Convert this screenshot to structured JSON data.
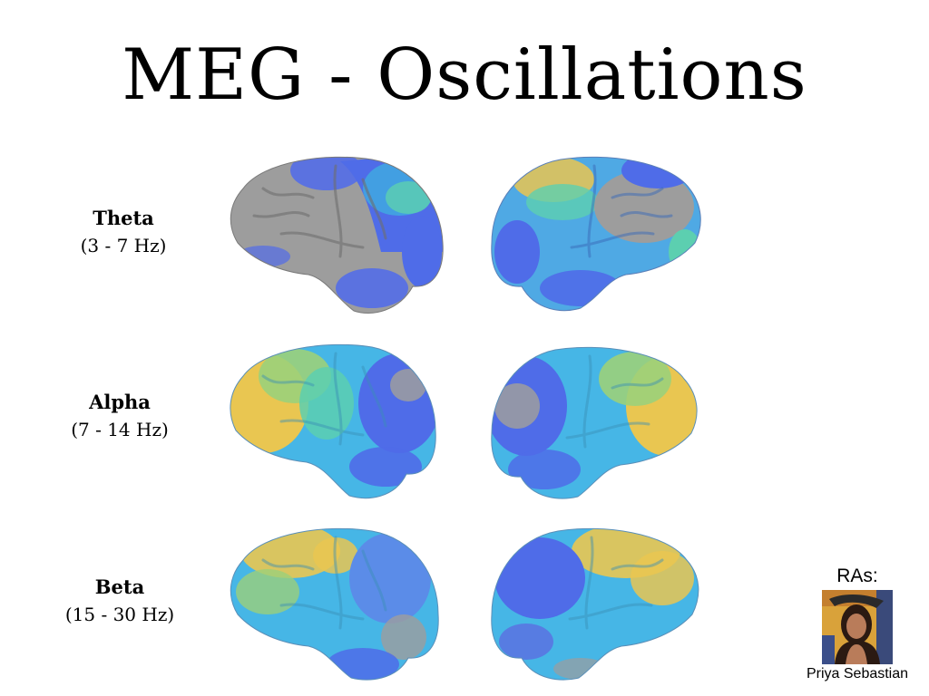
{
  "slide": {
    "title": "MEG - Oscillations",
    "bands": [
      {
        "name": "Theta",
        "range": "(3 - 7 Hz)"
      },
      {
        "name": "Alpha",
        "range": "(7 - 14 Hz)"
      },
      {
        "name": "Beta",
        "range": "(15 - 30 Hz)"
      }
    ],
    "ras_heading": "RAs:",
    "ra_name": "Priya Sebastian"
  },
  "colors": {
    "cortex_gray": "#9a9a9a",
    "blue": "#4f6ce8",
    "cyan": "#48bde6",
    "teal": "#5ccfb0",
    "yellow": "#e9c651"
  }
}
